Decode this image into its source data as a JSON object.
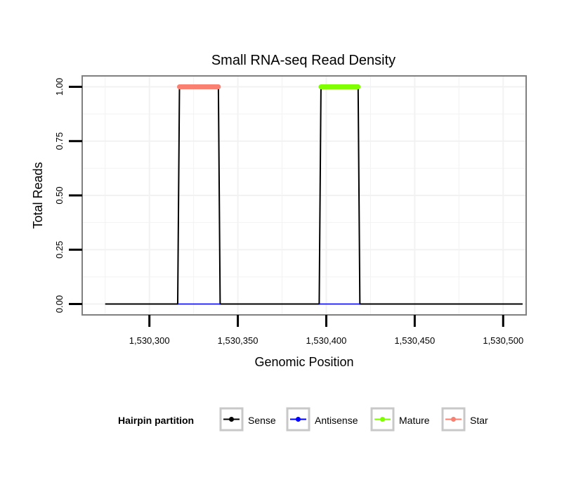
{
  "chart_data": {
    "type": "line",
    "title": "Small RNA-seq Read Density",
    "xlabel": "Genomic Position",
    "ylabel": "Total Reads",
    "xlim": [
      1530262,
      1530513
    ],
    "ylim": [
      -0.05,
      1.05
    ],
    "x_ticks": [
      {
        "value": 1530300,
        "label": "1,530,300"
      },
      {
        "value": 1530350,
        "label": "1,530,350"
      },
      {
        "value": 1530400,
        "label": "1,530,400"
      },
      {
        "value": 1530450,
        "label": "1,530,450"
      },
      {
        "value": 1530500,
        "label": "1,530,500"
      }
    ],
    "y_ticks": [
      {
        "value": 0.0,
        "label": "0.00"
      },
      {
        "value": 0.25,
        "label": "0.25"
      },
      {
        "value": 0.5,
        "label": "0.50"
      },
      {
        "value": 0.75,
        "label": "0.75"
      },
      {
        "value": 1.0,
        "label": "1.00"
      }
    ],
    "grid": true,
    "series": [
      {
        "name": "Sense",
        "color": "#000000",
        "x": [
          1530275,
          1530316,
          1530317,
          1530339,
          1530340,
          1530396,
          1530397,
          1530418,
          1530419,
          1530511
        ],
        "y": [
          0,
          0,
          1,
          1,
          0,
          0,
          1,
          1,
          0,
          0
        ]
      },
      {
        "name": "Antisense",
        "color": "#0000ff",
        "x": [
          1530316,
          1530340,
          1530396,
          1530419
        ],
        "y": [
          0,
          0,
          0,
          0
        ],
        "segments": [
          [
            0,
            1
          ],
          [
            2,
            3
          ]
        ]
      },
      {
        "name": "Mature",
        "color": "#7fff00",
        "x": [
          1530397,
          1530418
        ],
        "y": [
          1,
          1
        ]
      },
      {
        "name": "Star",
        "color": "#fa8072",
        "x": [
          1530317,
          1530339
        ],
        "y": [
          1,
          1
        ]
      }
    ],
    "legend": {
      "title": "Hairpin partition",
      "position": "bottom",
      "entries": [
        {
          "label": "Sense",
          "color": "#000000"
        },
        {
          "label": "Antisense",
          "color": "#0000ff"
        },
        {
          "label": "Mature",
          "color": "#7fff00"
        },
        {
          "label": "Star",
          "color": "#fa8072"
        }
      ]
    }
  }
}
